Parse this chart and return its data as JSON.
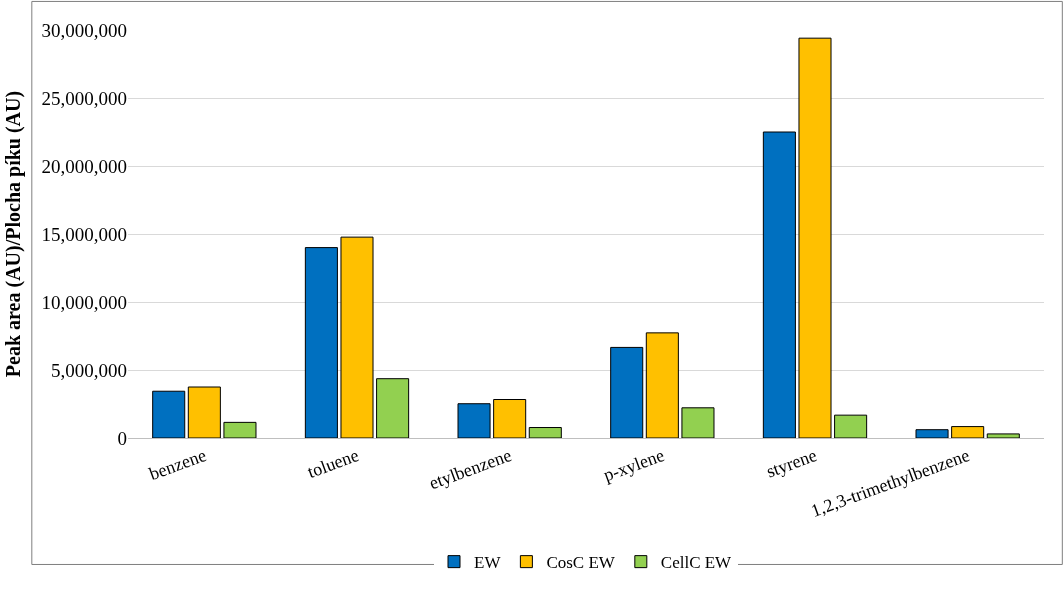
{
  "chart_data": {
    "type": "bar",
    "ylabel": "Peak area (AU)/Plocha píku (AU)",
    "categories": [
      "benzene",
      "toluene",
      "etylbenzene",
      "p-xylene",
      "styrene",
      "1,2,3-trimethylbenzene"
    ],
    "series": [
      {
        "name": "EW",
        "color": "#0070c0",
        "values": [
          3440000,
          14000000,
          2520000,
          6660000,
          22500000,
          610000
        ]
      },
      {
        "name": "CosC EW",
        "color": "#ffc000",
        "values": [
          3750000,
          14770000,
          2830000,
          7730000,
          29400000,
          840000
        ]
      },
      {
        "name": "CellC EW",
        "color": "#92d050",
        "values": [
          1150000,
          4360000,
          770000,
          2220000,
          1680000,
          300000
        ]
      }
    ],
    "ylim": [
      0,
      30000000
    ],
    "yticks": [
      {
        "value": 0,
        "label": "0"
      },
      {
        "value": 5000000,
        "label": "5,000,000"
      },
      {
        "value": 10000000,
        "label": "10,000,000"
      },
      {
        "value": 15000000,
        "label": "15,000,000"
      },
      {
        "value": 20000000,
        "label": "20,000,000"
      },
      {
        "value": 25000000,
        "label": "25,000,000"
      },
      {
        "value": 30000000,
        "label": "30,000,000"
      }
    ],
    "grid": "y",
    "legend": "bottom"
  }
}
